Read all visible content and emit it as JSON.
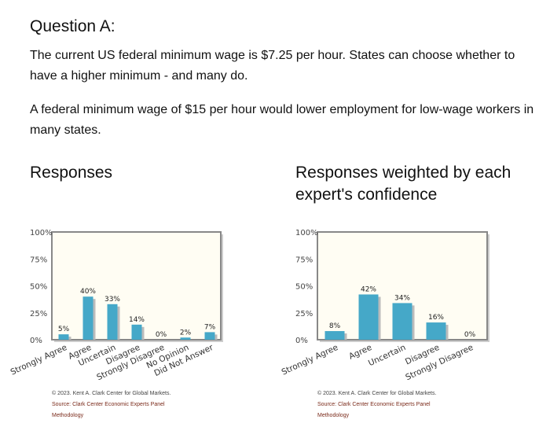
{
  "question": {
    "title": "Question A:",
    "paragraph1": "The current US federal minimum wage is $7.25 per hour. States can choose whether to have a higher minimum - and many do.",
    "paragraph2": "A federal minimum wage of $15 per hour would lower employment for low-wage workers in many states."
  },
  "footer": {
    "copyright": "© 2023. Kent A. Clark Center for Global Markets.",
    "source": "Source: Clark Center Economic Experts Panel",
    "methodology": "Methodology"
  },
  "colors": {
    "bar": "#45a8c8",
    "plot_bg": "#fffdf3",
    "frame": "#888888"
  },
  "chart_data": [
    {
      "type": "bar",
      "title": "Responses",
      "categories": [
        "Strongly Agree",
        "Agree",
        "Uncertain",
        "Disagree",
        "Strongly Disagree",
        "No Opinion",
        "Did Not Answer"
      ],
      "values": [
        5,
        40,
        33,
        14,
        0,
        2,
        7
      ],
      "data_labels": [
        "5%",
        "40%",
        "33%",
        "14%",
        "0%",
        "2%",
        "7%"
      ],
      "ylim": [
        0,
        100
      ],
      "yticks": [
        "0%",
        "25%",
        "50%",
        "75%",
        "100%"
      ],
      "grid": false
    },
    {
      "type": "bar",
      "title": "Responses weighted by each expert's confidence",
      "categories": [
        "Strongly Agree",
        "Agree",
        "Uncertain",
        "Disagree",
        "Strongly Disagree"
      ],
      "values": [
        8,
        42,
        34,
        16,
        0
      ],
      "data_labels": [
        "8%",
        "42%",
        "34%",
        "16%",
        "0%"
      ],
      "ylim": [
        0,
        100
      ],
      "yticks": [
        "0%",
        "25%",
        "50%",
        "75%",
        "100%"
      ],
      "grid": false
    }
  ]
}
